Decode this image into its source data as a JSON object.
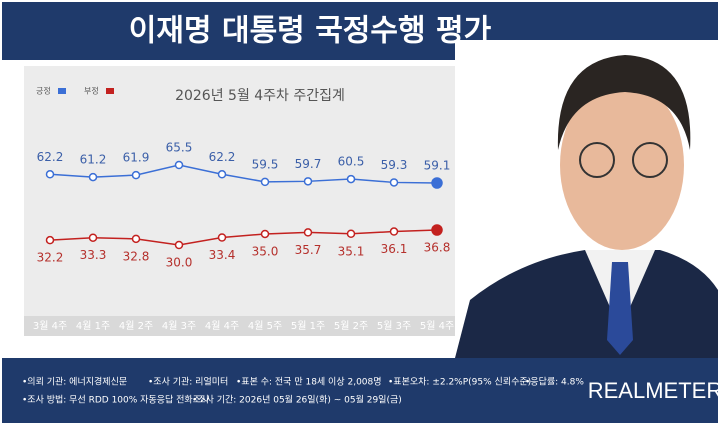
{
  "chart_data": {
    "type": "line",
    "title": "이재명 대통령 국정수행 평가",
    "subtitle": "2026년 5월 4주차 주간집계",
    "categories": [
      "3월 4주",
      "4월 1주",
      "4월 2주",
      "4월 3주",
      "4월 4주",
      "4월 5주",
      "5월 1주",
      "5월 2주",
      "5월 3주",
      "5월 4주"
    ],
    "series": [
      {
        "name": "긍정",
        "color": "#3b6fd6",
        "values": [
          62.2,
          61.2,
          61.9,
          65.5,
          62.2,
          59.5,
          59.7,
          60.5,
          59.3,
          59.1
        ]
      },
      {
        "name": "부정",
        "color": "#c3211f",
        "values": [
          32.2,
          33.3,
          32.8,
          30.0,
          33.4,
          35.0,
          35.7,
          35.1,
          36.1,
          36.8
        ],
        "value_labels": [
          "32.2",
          "33.3",
          "32.8",
          "30.0",
          "33.4",
          "35.0",
          "35.7",
          "35.1",
          "36.1",
          "36.8"
        ]
      }
    ]
  },
  "footer": {
    "items": [
      "•의뢰 기관: 에너지경제신문",
      "•조사 기관: 리얼미터",
      "•표본 수: 전국 만 18세 이상 2,008명",
      "•표본오차: ±2.2%P(95% 신뢰수준)",
      "•응답률: 4.8%",
      "•조사 방법: 무선 RDD 100% 자동응답 전화조사",
      "•조사 기간: 2026년 05월 26일(화) ~ 05월 29일(금)"
    ],
    "logo": "REALMETER"
  }
}
